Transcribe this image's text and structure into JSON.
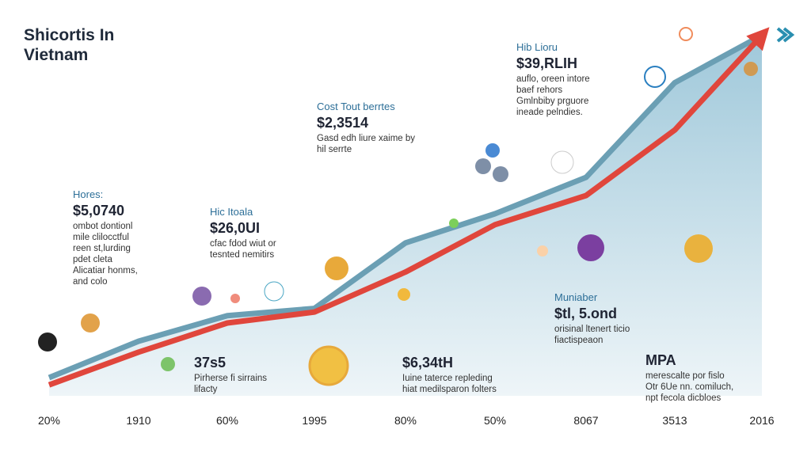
{
  "chart_data": {
    "type": "line",
    "title": "Shicortis In Vietnam",
    "categories": [
      "20%",
      "1910",
      "60%",
      "1995",
      "80%",
      "50%",
      "8067",
      "3513",
      "2016"
    ],
    "series": [
      {
        "name": null,
        "color": "#6b9fb4",
        "values": [
          5,
          15,
          22,
          24,
          42,
          50,
          60,
          86,
          99
        ]
      },
      {
        "name": null,
        "color": "#e0463c",
        "values": [
          3,
          12,
          20,
          23,
          34,
          47,
          55,
          73,
          99
        ]
      }
    ],
    "ylim": [
      0,
      100
    ],
    "annotations": [
      {
        "label": "Hores:",
        "value": "$5,0740",
        "text": [
          "ombot dontionl",
          "mile clilocctful",
          "reen st,lurding",
          "pdet cleta",
          "Alicatiar honms,",
          "and colo"
        ]
      },
      {
        "label": "Hic Itoala",
        "value": "$26,0UI",
        "text": [
          "cfac fdod wiut or",
          "tesnted nemitirs"
        ]
      },
      {
        "label": "Cost Tout berrtes",
        "value": "$2,3514",
        "text": [
          "Gasd edh liure xaime by",
          "hil serrte"
        ]
      },
      {
        "label": "Hib Lioru",
        "value": "$39,RLIH",
        "text": [
          "auflo, oreen intore",
          "baef rehors",
          "Gmlnbiby prguore",
          "ineade pelndies."
        ]
      },
      {
        "value": "37s5",
        "text": [
          "Pirherse fi sirrains",
          "lifacty"
        ]
      },
      {
        "value": "$6,34tH",
        "text": [
          "Iuine taterce repleding",
          "hiat medilsparon folters"
        ]
      },
      {
        "label": "Muniaber",
        "value": "$tl, 5.ond",
        "text": [
          "orisinal ltenert ticio",
          "fiactispeaon"
        ]
      },
      {
        "value": "MPA",
        "text": [
          "merescalte por fislo",
          "Otr 6Ue nn. comiluch,",
          "npt fecola dicbloes"
        ]
      }
    ]
  }
}
